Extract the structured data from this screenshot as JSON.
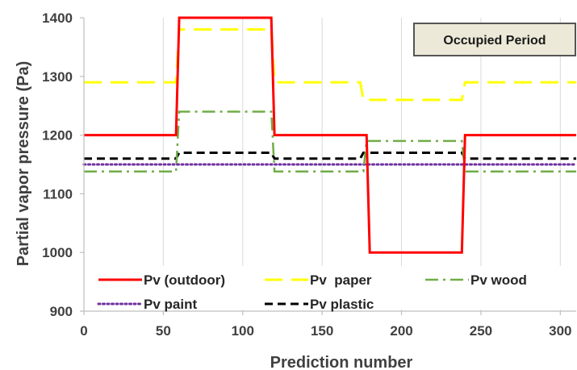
{
  "chart_data": {
    "type": "line",
    "xlabel": "Prediction number",
    "ylabel": "Partial vapor pressure (Pa)",
    "xlim": [
      0,
      310
    ],
    "ylim": [
      900,
      1400
    ],
    "x_ticks": [
      0,
      50,
      100,
      150,
      200,
      250,
      300
    ],
    "y_ticks": [
      900,
      1000,
      1100,
      1200,
      1300,
      1400
    ],
    "grid": "vertical",
    "annotation": "Occupied Period",
    "series": [
      {
        "name": "Pv (outdoor)",
        "color": "#ff0000",
        "style": "solid",
        "x": [
          0,
          58,
          60,
          118,
          120,
          178,
          180,
          238,
          240,
          310
        ],
        "y": [
          1200,
          1200,
          1400,
          1400,
          1200,
          1200,
          1000,
          1000,
          1200,
          1200
        ]
      },
      {
        "name": "Pv  paper",
        "color": "#ffff00",
        "style": "longdash",
        "x": [
          0,
          58,
          60,
          118,
          120,
          174,
          176,
          238,
          240,
          310
        ],
        "y": [
          1290,
          1290,
          1380,
          1380,
          1290,
          1290,
          1260,
          1260,
          1290,
          1290
        ]
      },
      {
        "name": "Pv wood",
        "color": "#70ad47",
        "style": "dashdot",
        "x": [
          0,
          58,
          60,
          118,
          120,
          176,
          178,
          238,
          240,
          310
        ],
        "y": [
          1138,
          1138,
          1240,
          1240,
          1138,
          1138,
          1190,
          1190,
          1138,
          1138
        ]
      },
      {
        "name": "Pv paint",
        "color": "#7030a0",
        "style": "dotted",
        "x": [
          0,
          310
        ],
        "y": [
          1150,
          1150
        ]
      },
      {
        "name": "Pv plastic",
        "color": "#000000",
        "style": "dashed",
        "x": [
          0,
          58,
          60,
          118,
          120,
          174,
          176,
          238,
          240,
          310
        ],
        "y": [
          1160,
          1160,
          1170,
          1170,
          1160,
          1160,
          1170,
          1170,
          1160,
          1160
        ]
      }
    ]
  }
}
